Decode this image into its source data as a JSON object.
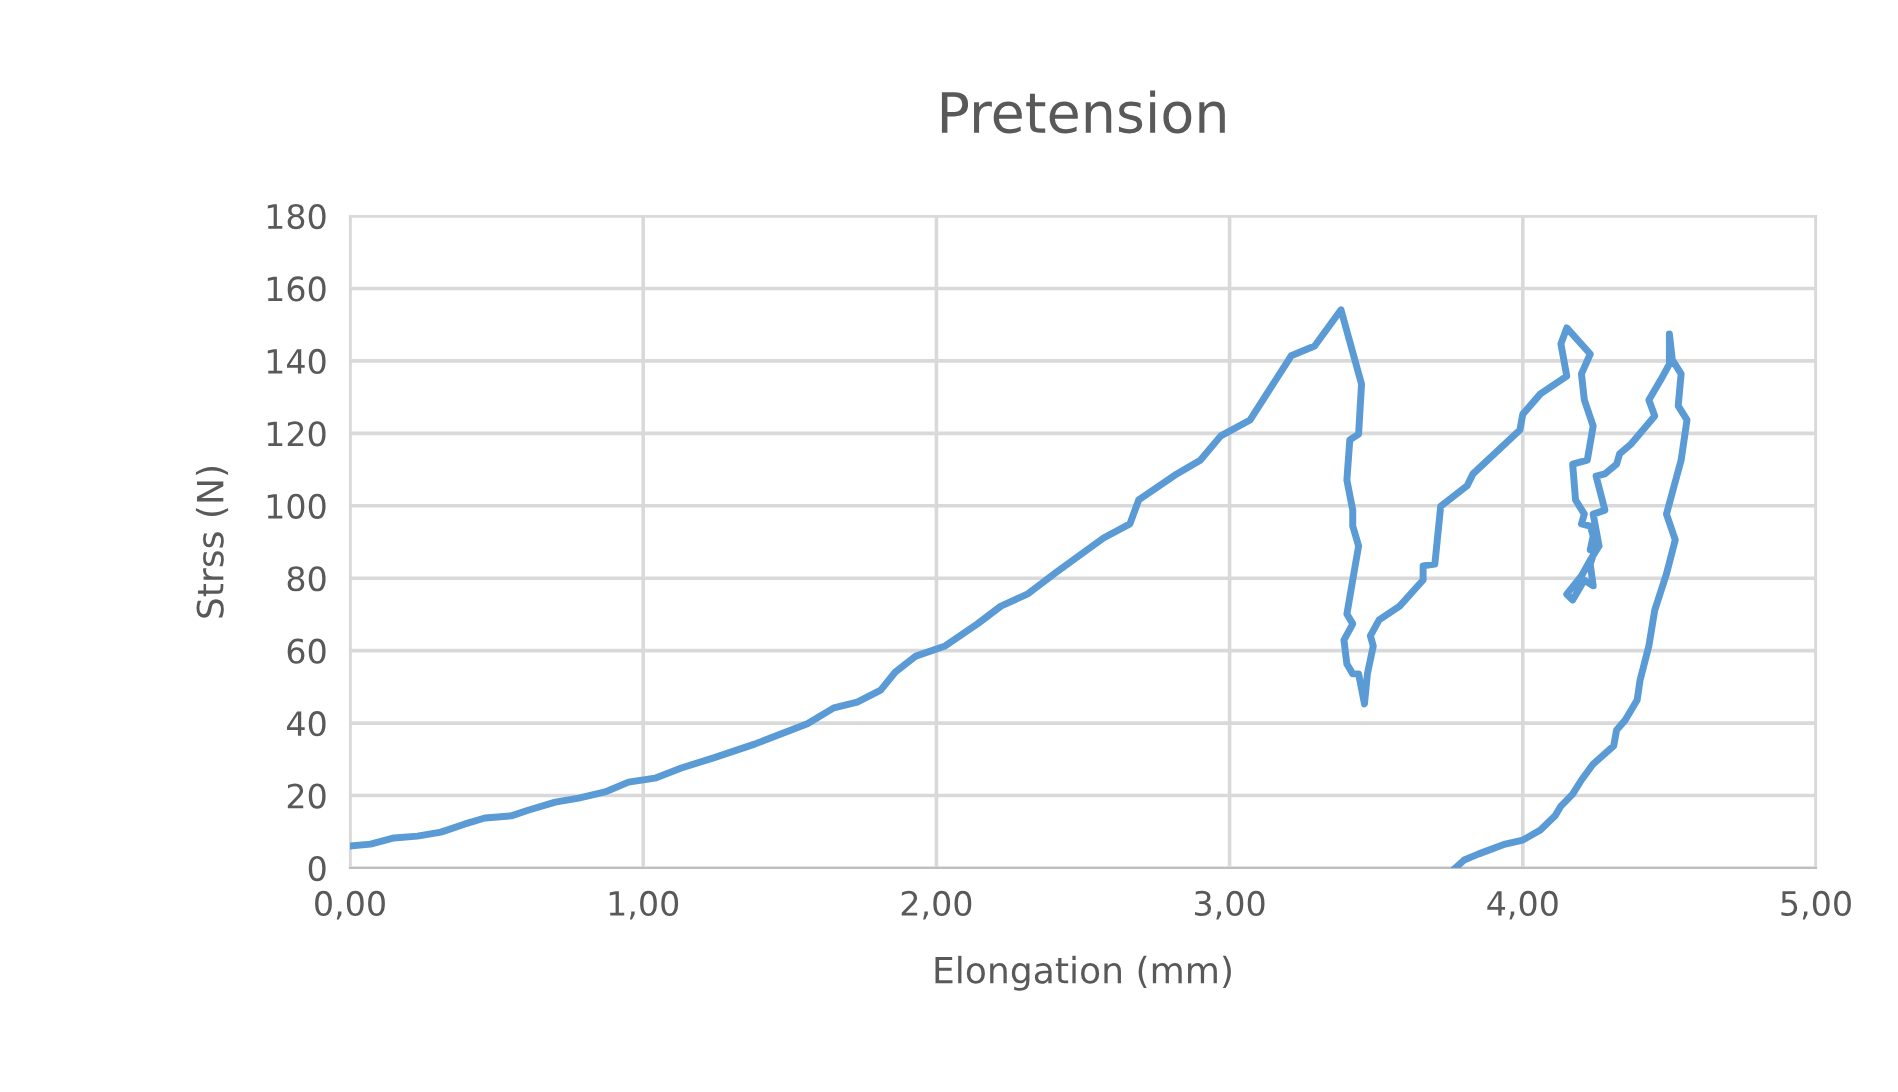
{
  "chart_data": {
    "type": "line",
    "title": "Pretension",
    "xlabel": "Elongation (mm)",
    "ylabel": "Strss (N)",
    "xlim": [
      0,
      5
    ],
    "ylim": [
      0,
      180
    ],
    "xticks": [
      {
        "value": 0,
        "label": "0,00"
      },
      {
        "value": 1,
        "label": "1,00"
      },
      {
        "value": 2,
        "label": "2,00"
      },
      {
        "value": 3,
        "label": "3,00"
      },
      {
        "value": 4,
        "label": "4,00"
      },
      {
        "value": 5,
        "label": "5,00"
      }
    ],
    "yticks": [
      0,
      20,
      40,
      60,
      80,
      100,
      120,
      140,
      160,
      180
    ],
    "grid": true,
    "legend": false,
    "marker": "none",
    "line_style": "solid",
    "series": [
      {
        "color": "#5b9bd5",
        "x": [
          0.0,
          0.07,
          0.15,
          0.23,
          0.31,
          0.39,
          0.46,
          0.55,
          0.61,
          0.7,
          0.78,
          0.87,
          0.95,
          1.04,
          1.13,
          1.24,
          1.38,
          1.56,
          1.65,
          1.73,
          1.81,
          1.86,
          1.93,
          2.03,
          2.14,
          2.22,
          2.31,
          2.41,
          2.57,
          2.66,
          2.69,
          2.82,
          2.9,
          2.97,
          3.07,
          3.21,
          3.29,
          3.38,
          3.45,
          3.44,
          3.41,
          3.4,
          3.42,
          3.42,
          3.44,
          3.42,
          3.4,
          3.42,
          3.39,
          3.4,
          3.42,
          3.44,
          3.46,
          3.47,
          3.49,
          3.48,
          3.51,
          3.58,
          3.66,
          3.66,
          3.7,
          3.72,
          3.81,
          3.83,
          3.99,
          4.0,
          4.06,
          4.15,
          4.13,
          4.15,
          4.23,
          4.2,
          4.21,
          4.24,
          4.22,
          4.17,
          4.18,
          4.21,
          4.2,
          4.23,
          4.24,
          4.23,
          4.25,
          4.23,
          4.24,
          4.21,
          4.17,
          4.15,
          4.2,
          4.23,
          4.26,
          4.24,
          4.28,
          4.25,
          4.28,
          4.32,
          4.33,
          4.37,
          4.45,
          4.43,
          4.47,
          4.5,
          4.5,
          4.51,
          4.54,
          4.53,
          4.56,
          4.54,
          4.49,
          4.52,
          4.49,
          4.45,
          4.43,
          4.4,
          4.39,
          4.35,
          4.32,
          4.31,
          4.24,
          4.2,
          4.17,
          4.13,
          4.11,
          4.06,
          4.0,
          3.94,
          3.85,
          3.8,
          3.77
        ],
        "values": [
          6.1,
          6.6,
          8.3,
          8.8,
          9.9,
          12.1,
          13.8,
          14.4,
          16.0,
          18.2,
          19.3,
          21.0,
          23.7,
          24.8,
          27.6,
          30.4,
          34.2,
          39.8,
          44.2,
          45.8,
          49.1,
          54.1,
          58.5,
          61.3,
          67.4,
          72.3,
          75.6,
          81.7,
          91.1,
          95.0,
          101.6,
          108.8,
          112.6,
          119.3,
          123.7,
          141.4,
          144.1,
          154.1,
          133.6,
          119.8,
          118.2,
          107.1,
          98.8,
          94.4,
          88.9,
          79.5,
          70.1,
          67.4,
          62.9,
          56.3,
          53.6,
          53.6,
          45.3,
          53.6,
          61.3,
          64.1,
          68.5,
          72.3,
          79.5,
          83.4,
          83.9,
          99.9,
          105.5,
          108.8,
          120.9,
          125.3,
          130.9,
          135.8,
          144.7,
          149.1,
          141.9,
          136.4,
          129.2,
          122.0,
          112.6,
          111.5,
          101.6,
          97.7,
          95.0,
          94.4,
          91.7,
          87.8,
          88.9,
          83.9,
          77.9,
          79.5,
          74.0,
          75.6,
          80.6,
          85.0,
          88.9,
          97.7,
          98.8,
          108.2,
          108.8,
          111.5,
          114.3,
          117.1,
          124.8,
          129.2,
          134.7,
          139.1,
          147.4,
          140.3,
          136.4,
          127.6,
          123.7,
          112.6,
          97.7,
          90.6,
          81.2,
          71.2,
          61.3,
          51.9,
          46.4,
          40.9,
          38.1,
          33.7,
          28.7,
          24.3,
          20.4,
          17.1,
          14.4,
          10.5,
          7.7,
          6.6,
          3.9,
          2.2,
          0.0
        ]
      }
    ]
  }
}
